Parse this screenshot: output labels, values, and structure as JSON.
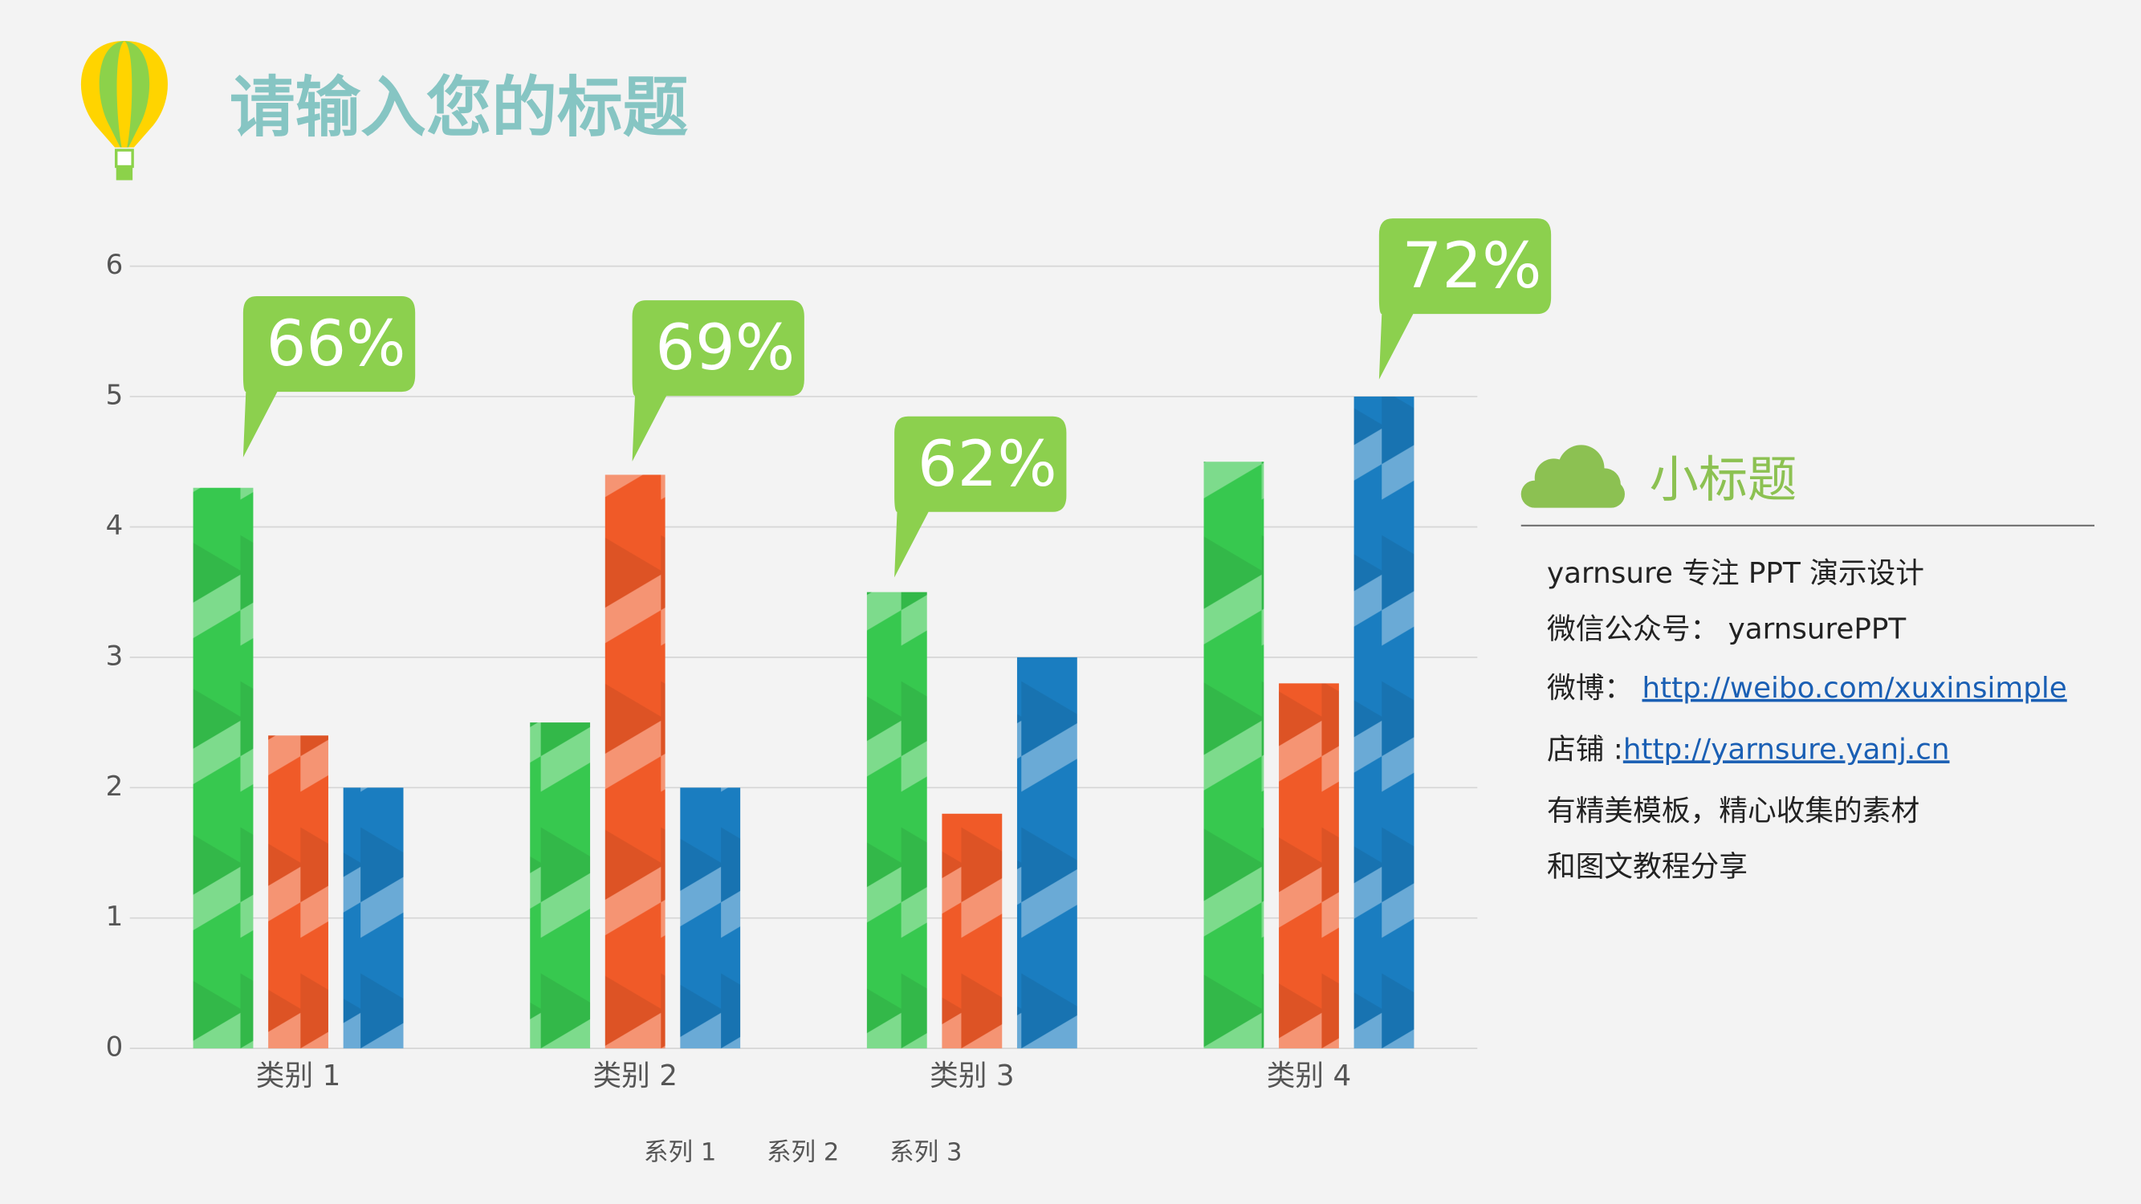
{
  "chart_data": {
    "type": "bar",
    "title": "请输入您的标题",
    "categories": [
      "类别 1",
      "类别 2",
      "类别 3",
      "类别 4"
    ],
    "series": [
      {
        "name": "系列 1",
        "color": "#37c84f",
        "values": [
          4.3,
          2.5,
          3.5,
          4.5
        ]
      },
      {
        "name": "系列 2",
        "color": "#f05a28",
        "values": [
          2.4,
          4.4,
          1.8,
          2.8
        ]
      },
      {
        "name": "系列 3",
        "color": "#1a7dc0",
        "values": [
          2.0,
          2.0,
          3.0,
          5.0
        ]
      }
    ],
    "callouts": [
      "66%",
      "69%",
      "62%",
      "72%"
    ],
    "ylim": [
      0,
      6
    ],
    "yticks": [
      0,
      1,
      2,
      3,
      4,
      5,
      6
    ],
    "grid": true
  },
  "sidebar": {
    "subtitle": "小标题",
    "lines": [
      {
        "text": "yarnsure 专注 PPT 演示设计"
      },
      {
        "text": "微信公众号： yarnsurePPT"
      },
      {
        "text": "微博： ",
        "link": "http://weibo.com/xuxinsimple"
      },
      {
        "text": "店铺 :",
        "link": "http://yarnsure.yanj.cn"
      },
      {
        "text": "有精美模板，精心收集的素材"
      },
      {
        "text": "和图文教程分享"
      }
    ]
  }
}
